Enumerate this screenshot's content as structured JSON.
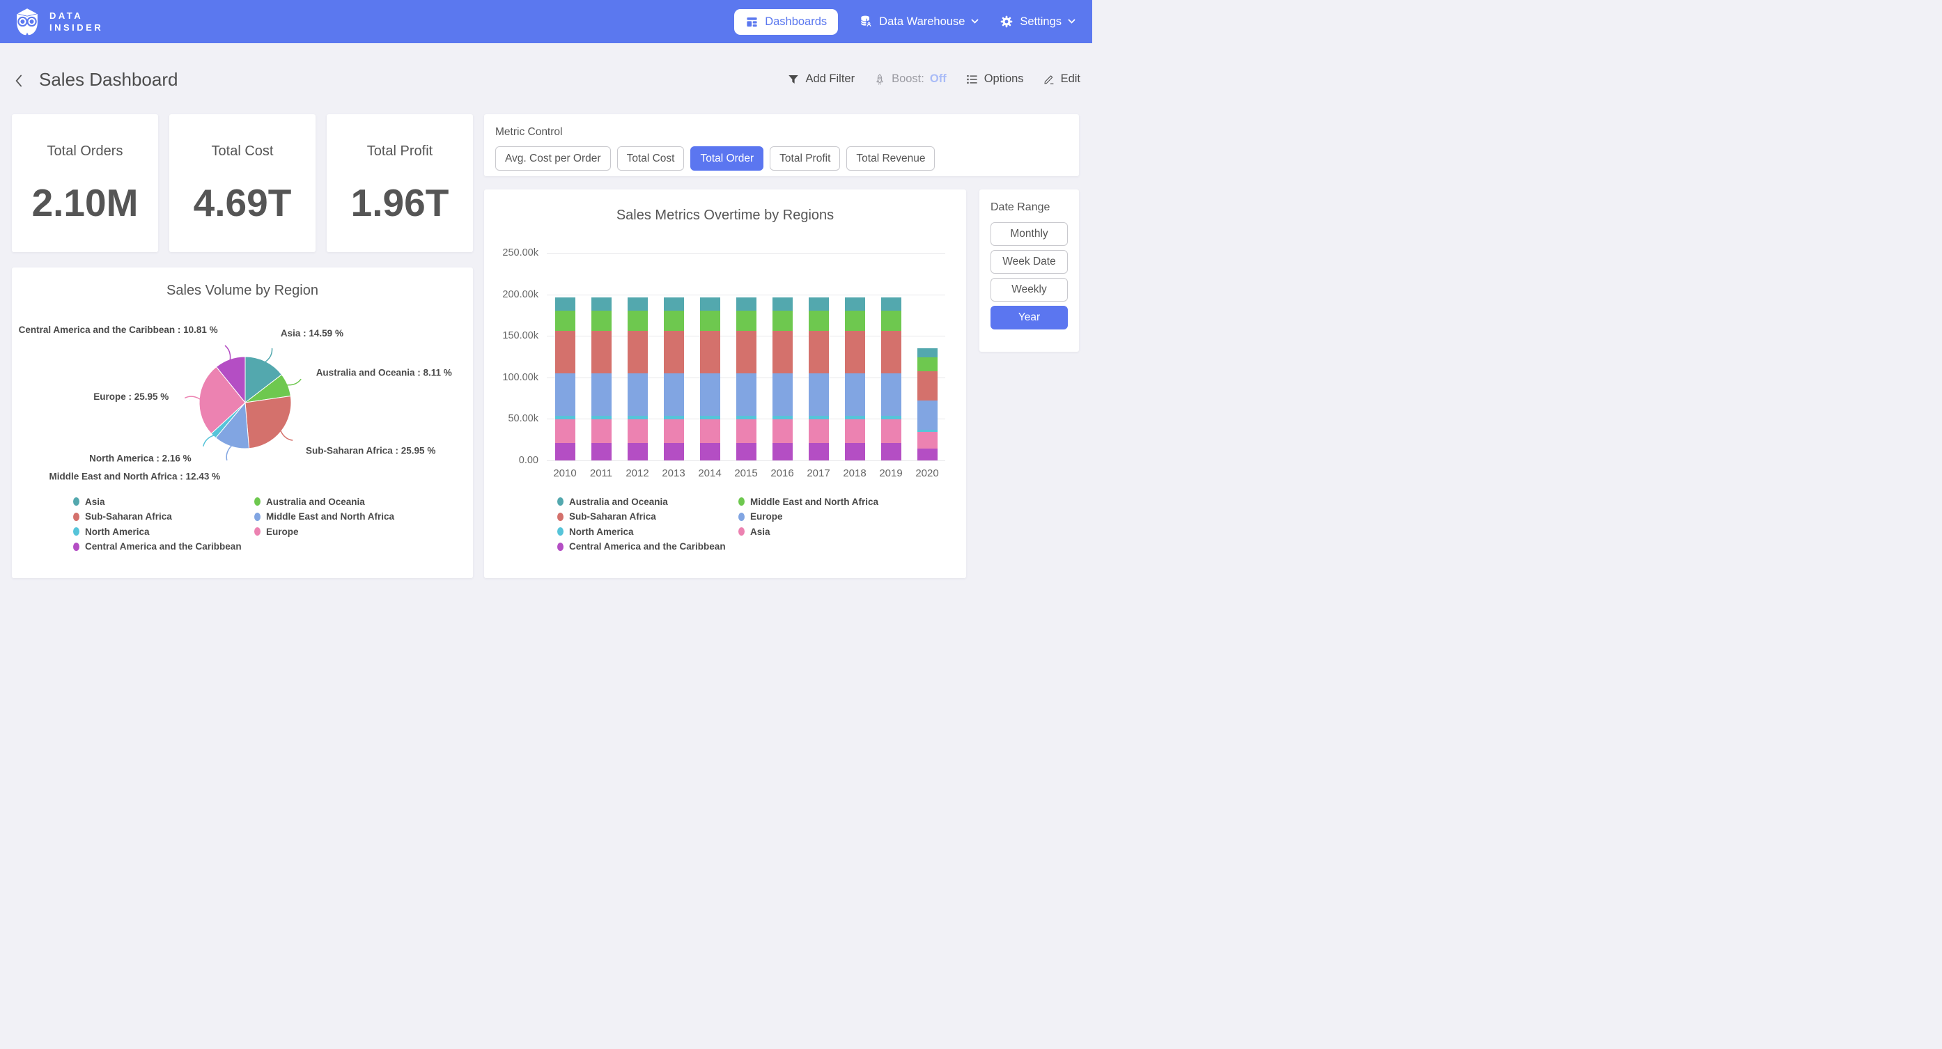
{
  "navbar": {
    "brand": [
      "DATA",
      "INSIDER"
    ],
    "dashboards": "Dashboards",
    "data_warehouse": "Data Warehouse",
    "settings": "Settings"
  },
  "header": {
    "title": "Sales Dashboard",
    "add_filter": "Add Filter",
    "boost_label": "Boost:",
    "boost_state": "Off",
    "options": "Options",
    "edit": "Edit"
  },
  "kpis": [
    {
      "label": "Total Orders",
      "value": "2.10M"
    },
    {
      "label": "Total Cost",
      "value": "4.69T"
    },
    {
      "label": "Total Profit",
      "value": "1.96T"
    }
  ],
  "metric_control": {
    "label": "Metric Control",
    "options": [
      {
        "label": "Avg. Cost per Order",
        "selected": false
      },
      {
        "label": "Total Cost",
        "selected": false
      },
      {
        "label": "Total Order",
        "selected": true
      },
      {
        "label": "Total Profit",
        "selected": false
      },
      {
        "label": "Total Revenue",
        "selected": false
      }
    ]
  },
  "date_range": {
    "label": "Date Range",
    "options": [
      {
        "label": "Monthly",
        "selected": false
      },
      {
        "label": "Week Date",
        "selected": false
      },
      {
        "label": "Weekly",
        "selected": false
      },
      {
        "label": "Year",
        "selected": true
      }
    ]
  },
  "colors": {
    "navbar": "#5B78EF",
    "accent": "#5B76F0",
    "page_bg": "#F1F1F6",
    "teal": "#53A8AE",
    "green": "#6EC84F",
    "red": "#D4716C",
    "periwinkle": "#81A5E2",
    "cyan": "#56C4D9",
    "pink": "#EC82B1",
    "purple": "#B44EC4"
  },
  "chart_data": [
    {
      "type": "pie",
      "title": "Sales Volume by Region",
      "label_format": "{label} : {pct} %",
      "slices": [
        {
          "label": "Asia",
          "pct": 14.59,
          "color": "#53A8AE"
        },
        {
          "label": "Australia and Oceania",
          "pct": 8.11,
          "color": "#6EC84F"
        },
        {
          "label": "Sub-Saharan Africa",
          "pct": 25.95,
          "color": "#D4716C"
        },
        {
          "label": "Middle East and North Africa",
          "pct": 12.43,
          "color": "#81A5E2"
        },
        {
          "label": "North America",
          "pct": 2.16,
          "color": "#56C4D9"
        },
        {
          "label": "Europe",
          "pct": 25.95,
          "color": "#EC82B1"
        },
        {
          "label": "Central America and the Caribbean",
          "pct": 10.81,
          "color": "#B44EC4"
        }
      ],
      "legend_columns": [
        [
          "Asia",
          "Sub-Saharan Africa",
          "North America",
          "Central America and the Caribbean"
        ],
        [
          "Australia and Oceania",
          "Middle East and North Africa",
          "Europe"
        ]
      ]
    },
    {
      "type": "bar",
      "stacked": true,
      "title": "Sales Metrics Overtime by Regions",
      "categories": [
        "2010",
        "2011",
        "2012",
        "2013",
        "2014",
        "2015",
        "2016",
        "2017",
        "2018",
        "2019",
        "2020"
      ],
      "ylim": [
        0,
        250000
      ],
      "grid": true,
      "yticks": [
        {
          "value": 0,
          "label": "0.00"
        },
        {
          "value": 50000,
          "label": "50.00k"
        },
        {
          "value": 100000,
          "label": "100.00k"
        },
        {
          "value": 150000,
          "label": "150.00k"
        },
        {
          "value": 200000,
          "label": "200.00k"
        },
        {
          "value": 250000,
          "label": "250.00k"
        }
      ],
      "series_bottom_to_top": [
        {
          "name": "Central America and the Caribbean",
          "color": "#B44EC4",
          "values": [
            21200,
            21200,
            21200,
            21200,
            21200,
            21200,
            21200,
            21200,
            21200,
            21200,
            14500
          ]
        },
        {
          "name": "Asia",
          "color": "#EC82B1",
          "values": [
            28600,
            28600,
            28600,
            28600,
            28600,
            28600,
            28600,
            28600,
            28600,
            28600,
            19700
          ]
        },
        {
          "name": "North America",
          "color": "#56C4D9",
          "values": [
            4200,
            4200,
            4200,
            4200,
            4200,
            4200,
            4200,
            4200,
            4200,
            4200,
            2900
          ]
        },
        {
          "name": "Europe",
          "color": "#81A5E2",
          "values": [
            50900,
            50900,
            50900,
            50900,
            50900,
            50900,
            50900,
            50900,
            50900,
            50900,
            35000
          ]
        },
        {
          "name": "Sub-Saharan Africa",
          "color": "#D4716C",
          "values": [
            50900,
            50900,
            50900,
            50900,
            50900,
            50900,
            50900,
            50900,
            50900,
            50900,
            35000
          ]
        },
        {
          "name": "Middle East and North Africa",
          "color": "#6EC84F",
          "values": [
            24400,
            24400,
            24400,
            24400,
            24400,
            24400,
            24400,
            24400,
            24400,
            24400,
            16800
          ]
        },
        {
          "name": "Australia and Oceania",
          "color": "#53A8AE",
          "values": [
            15900,
            15900,
            15900,
            15900,
            15900,
            15900,
            15900,
            15900,
            15900,
            15900,
            10900
          ]
        }
      ],
      "legend_columns": [
        [
          "Australia and Oceania",
          "Sub-Saharan Africa",
          "North America",
          "Central America and the Caribbean"
        ],
        [
          "Middle East and North Africa",
          "Europe",
          "Asia"
        ]
      ]
    }
  ]
}
